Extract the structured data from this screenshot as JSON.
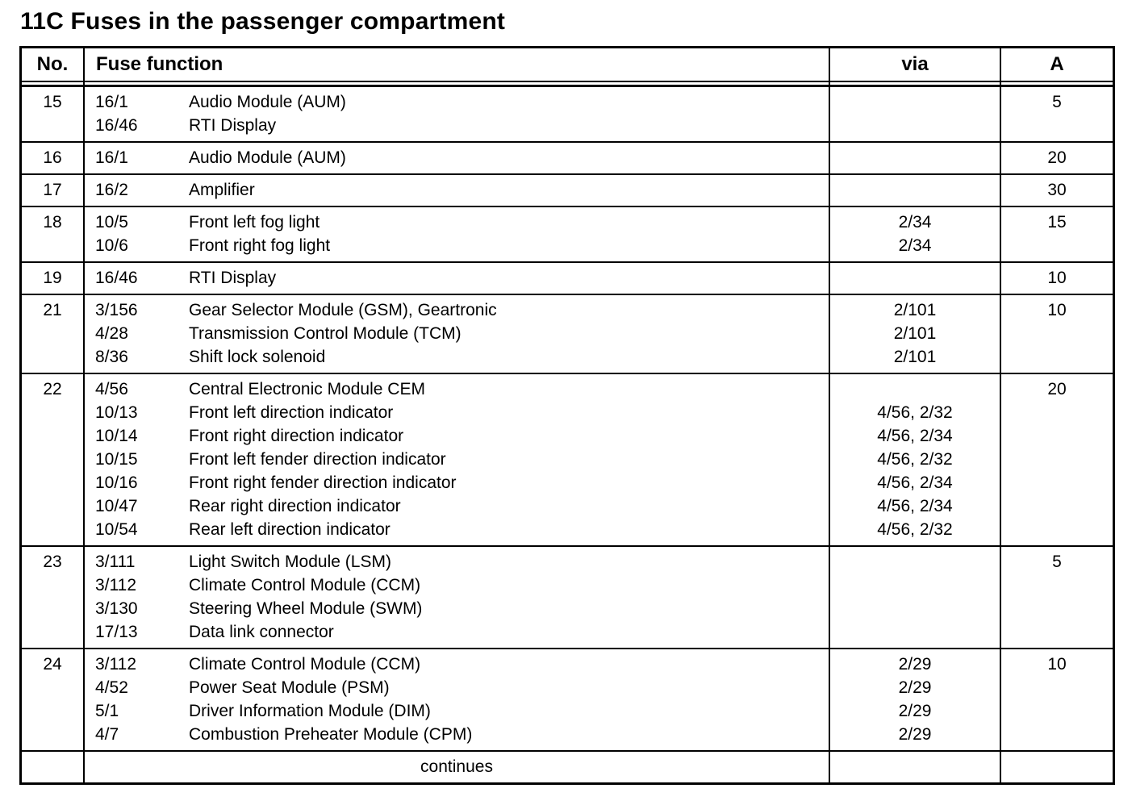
{
  "page": {
    "title": "11C Fuses in the passenger compartment"
  },
  "table": {
    "headers": {
      "no": "No.",
      "function": "Fuse function",
      "via": "via",
      "amp": "A"
    },
    "footer": "continues",
    "rows": [
      {
        "no": "15",
        "amp": "5",
        "lines": [
          {
            "code": "16/1",
            "desc": "Audio Module (AUM)",
            "via": ""
          },
          {
            "code": "16/46",
            "desc": "RTI Display",
            "via": ""
          }
        ]
      },
      {
        "no": "16",
        "amp": "20",
        "lines": [
          {
            "code": "16/1",
            "desc": "Audio Module (AUM)",
            "via": ""
          }
        ]
      },
      {
        "no": "17",
        "amp": "30",
        "lines": [
          {
            "code": "16/2",
            "desc": "Amplifier",
            "via": ""
          }
        ]
      },
      {
        "no": "18",
        "amp": "15",
        "lines": [
          {
            "code": "10/5",
            "desc": "Front left fog light",
            "via": "2/34"
          },
          {
            "code": "10/6",
            "desc": "Front right fog light",
            "via": "2/34"
          }
        ]
      },
      {
        "no": "19",
        "amp": "10",
        "lines": [
          {
            "code": "16/46",
            "desc": "RTI Display",
            "via": ""
          }
        ]
      },
      {
        "no": "21",
        "amp": "10",
        "lines": [
          {
            "code": "3/156",
            "desc": "Gear Selector Module (GSM), Geartronic",
            "via": "2/101"
          },
          {
            "code": "4/28",
            "desc": "Transmission Control Module (TCM)",
            "via": "2/101"
          },
          {
            "code": "8/36",
            "desc": "Shift lock solenoid",
            "via": "2/101"
          }
        ]
      },
      {
        "no": "22",
        "amp": "20",
        "lines": [
          {
            "code": "4/56",
            "desc": "Central Electronic Module CEM",
            "via": ""
          },
          {
            "code": "10/13",
            "desc": "Front left direction indicator",
            "via": "4/56, 2/32"
          },
          {
            "code": "10/14",
            "desc": "Front right direction indicator",
            "via": "4/56, 2/34"
          },
          {
            "code": "10/15",
            "desc": "Front left fender direction indicator",
            "via": "4/56, 2/32"
          },
          {
            "code": "10/16",
            "desc": "Front right fender direction indicator",
            "via": "4/56, 2/34"
          },
          {
            "code": "10/47",
            "desc": "Rear right direction indicator",
            "via": "4/56, 2/34"
          },
          {
            "code": "10/54",
            "desc": "Rear left direction indicator",
            "via": "4/56, 2/32"
          }
        ]
      },
      {
        "no": "23",
        "amp": "5",
        "lines": [
          {
            "code": "3/111",
            "desc": "Light Switch Module (LSM)",
            "via": ""
          },
          {
            "code": "3/112",
            "desc": "Climate Control Module (CCM)",
            "via": ""
          },
          {
            "code": "3/130",
            "desc": "Steering Wheel Module (SWM)",
            "via": ""
          },
          {
            "code": "17/13",
            "desc": "Data link connector",
            "via": ""
          }
        ]
      },
      {
        "no": "24",
        "amp": "10",
        "lines": [
          {
            "code": "3/112",
            "desc": "Climate Control Module (CCM)",
            "via": "2/29"
          },
          {
            "code": "4/52",
            "desc": "Power Seat Module (PSM)",
            "via": "2/29"
          },
          {
            "code": "5/1",
            "desc": "Driver Information Module (DIM)",
            "via": "2/29"
          },
          {
            "code": "4/7",
            "desc": "Combustion Preheater Module (CPM)",
            "via": "2/29"
          }
        ]
      }
    ]
  }
}
